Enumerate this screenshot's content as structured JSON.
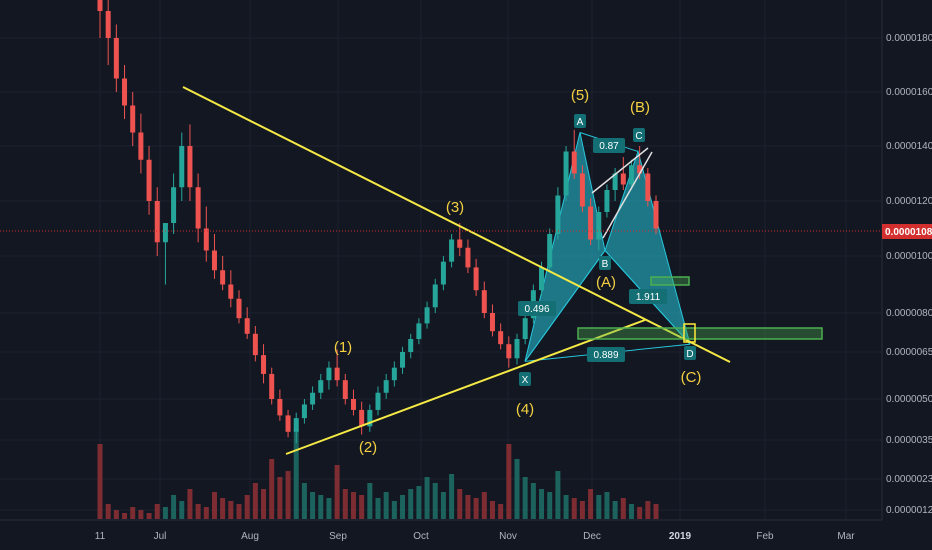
{
  "chart_data": {
    "type": "candlestick",
    "x_axis": {
      "ticks": [
        "11",
        "Jul",
        "Aug",
        "Sep",
        "Oct",
        "Nov",
        "Dec",
        "2019",
        "Feb",
        "Mar"
      ],
      "bold_tick": "2019"
    },
    "y_axis": {
      "ticks": [
        "0.00001800",
        "0.00001600",
        "0.00001400",
        "0.00001200",
        "0.00001000",
        "0.00000800",
        "0.00000650",
        "0.00000500",
        "0.00000350",
        "0.00000230",
        "0.00000120"
      ]
    },
    "current_price": "0.00001081",
    "elliott_waves": [
      {
        "label": "(1)",
        "price": 6.6e-06
      },
      {
        "label": "(2)",
        "price": 3.7e-06
      },
      {
        "label": "(3)",
        "price": 1.12e-05
      },
      {
        "label": "(4)",
        "price": 6e-06
      },
      {
        "label": "(5)",
        "price": 1.45e-05
      },
      {
        "label": "(A)",
        "price": 1.02e-05
      },
      {
        "label": "(B)",
        "price": 1.4e-05
      },
      {
        "label": "(C)",
        "price": 6.8e-06
      }
    ],
    "harmonic_pattern": {
      "points": [
        {
          "label": "X",
          "price": 6.2e-06
        },
        {
          "label": "A",
          "price": 1.45e-05
        },
        {
          "label": "B",
          "price": 1.02e-05
        },
        {
          "label": "C",
          "price": 1.38e-05
        },
        {
          "label": "D",
          "price": 6.8e-06
        }
      ],
      "ratios": [
        "0.87",
        "0.496",
        "1.911",
        "0.889"
      ]
    },
    "series": [
      {
        "name": "price",
        "ohlc": [
          [
            2.5e-05,
            2.52e-05,
            1.8e-05,
            1.9e-05
          ],
          [
            1.9e-05,
            1.95e-05,
            1.7e-05,
            1.8e-05
          ],
          [
            1.8e-05,
            1.85e-05,
            1.6e-05,
            1.65e-05
          ],
          [
            1.65e-05,
            1.7e-05,
            1.5e-05,
            1.55e-05
          ],
          [
            1.55e-05,
            1.6e-05,
            1.4e-05,
            1.45e-05
          ],
          [
            1.45e-05,
            1.52e-05,
            1.3e-05,
            1.35e-05
          ],
          [
            1.35e-05,
            1.4e-05,
            1.15e-05,
            1.2e-05
          ],
          [
            1.2e-05,
            1.25e-05,
            1e-05,
            1.05e-05
          ],
          [
            1.05e-05,
            1.1e-05,
            9e-06,
            1.12e-05
          ],
          [
            1.12e-05,
            1.3e-05,
            1.08e-05,
            1.25e-05
          ],
          [
            1.25e-05,
            1.45e-05,
            1.2e-05,
            1.4e-05
          ],
          [
            1.4e-05,
            1.48e-05,
            1.2e-05,
            1.25e-05
          ],
          [
            1.25e-05,
            1.3e-05,
            1.05e-05,
            1.1e-05
          ],
          [
            1.1e-05,
            1.18e-05,
            9.8e-06,
            1.02e-05
          ],
          [
            1.02e-05,
            1.08e-05,
            9.2e-06,
            9.5e-06
          ],
          [
            9.5e-06,
            1e-05,
            8.8e-06,
            9e-06
          ],
          [
            9e-06,
            9.5e-06,
            8.2e-06,
            8.5e-06
          ],
          [
            8.5e-06,
            8.8e-06,
            7.6e-06,
            7.8e-06
          ],
          [
            7.8e-06,
            8.2e-06,
            7e-06,
            7.2e-06
          ],
          [
            7.2e-06,
            7.5e-06,
            6.2e-06,
            6.4e-06
          ],
          [
            6.4e-06,
            6.8e-06,
            5.5e-06,
            5.8e-06
          ],
          [
            5.8e-06,
            6e-06,
            4.8e-06,
            5e-06
          ],
          [
            5e-06,
            5.3e-06,
            4.2e-06,
            4.4e-06
          ],
          [
            4.4e-06,
            4.6e-06,
            3.6e-06,
            3.8e-06
          ],
          [
            3.8e-06,
            4.5e-06,
            3.4e-06,
            4.3e-06
          ],
          [
            4.3e-06,
            5e-06,
            4.1e-06,
            4.8e-06
          ],
          [
            4.8e-06,
            5.4e-06,
            4.6e-06,
            5.2e-06
          ],
          [
            5.2e-06,
            5.8e-06,
            5e-06,
            5.6e-06
          ],
          [
            5.6e-06,
            6.2e-06,
            5.3e-06,
            6e-06
          ],
          [
            6e-06,
            6.6e-06,
            5.4e-06,
            5.6e-06
          ],
          [
            5.6e-06,
            5.8e-06,
            4.8e-06,
            5e-06
          ],
          [
            5e-06,
            5.3e-06,
            4.4e-06,
            4.6e-06
          ],
          [
            4.6e-06,
            4.9e-06,
            3.7e-06,
            4e-06
          ],
          [
            4e-06,
            4.8e-06,
            3.8e-06,
            4.6e-06
          ],
          [
            4.6e-06,
            5.4e-06,
            4.4e-06,
            5.2e-06
          ],
          [
            5.2e-06,
            5.8e-06,
            5e-06,
            5.6e-06
          ],
          [
            5.6e-06,
            6.2e-06,
            5.4e-06,
            6e-06
          ],
          [
            6e-06,
            6.7e-06,
            5.8e-06,
            6.5e-06
          ],
          [
            6.5e-06,
            7.2e-06,
            6.3e-06,
            7e-06
          ],
          [
            7e-06,
            7.8e-06,
            6.8e-06,
            7.6e-06
          ],
          [
            7.6e-06,
            8.4e-06,
            7.4e-06,
            8.2e-06
          ],
          [
            8.2e-06,
            9.2e-06,
            8e-06,
            9e-06
          ],
          [
            9e-06,
            1e-05,
            8.8e-06,
            9.8e-06
          ],
          [
            9.8e-06,
            1.08e-05,
            9.6e-06,
            1.06e-05
          ],
          [
            1.06e-05,
            1.12e-05,
            1e-05,
            1.03e-05
          ],
          [
            1.03e-05,
            1.06e-05,
            9.4e-06,
            9.6e-06
          ],
          [
            9.6e-06,
            9.9e-06,
            8.6e-06,
            8.8e-06
          ],
          [
            8.8e-06,
            9.1e-06,
            7.8e-06,
            8e-06
          ],
          [
            8e-06,
            8.3e-06,
            7.1e-06,
            7.3e-06
          ],
          [
            7.3e-06,
            7.6e-06,
            6.6e-06,
            6.8e-06
          ],
          [
            6.8e-06,
            7.1e-06,
            6e-06,
            6.3e-06
          ],
          [
            6.3e-06,
            7.2e-06,
            6.1e-06,
            7e-06
          ],
          [
            7e-06,
            8e-06,
            6.8e-06,
            7.8e-06
          ],
          [
            7.8e-06,
            9e-06,
            7.6e-06,
            8.8e-06
          ],
          [
            8.8e-06,
            9.8e-06,
            8.6e-06,
            9.6e-06
          ],
          [
            9.6e-06,
            1.1e-05,
            9.4e-06,
            1.08e-05
          ],
          [
            1.08e-05,
            1.25e-05,
            1.06e-05,
            1.22e-05
          ],
          [
            1.22e-05,
            1.4e-05,
            1.2e-05,
            1.38e-05
          ],
          [
            1.38e-05,
            1.46e-05,
            1.28e-05,
            1.3e-05
          ],
          [
            1.3e-05,
            1.33e-05,
            1.16e-05,
            1.18e-05
          ],
          [
            1.18e-05,
            1.21e-05,
            1.04e-05,
            1.06e-05
          ],
          [
            1.06e-05,
            1.18e-05,
            1.02e-05,
            1.16e-05
          ],
          [
            1.16e-05,
            1.26e-05,
            1.14e-05,
            1.24e-05
          ],
          [
            1.24e-05,
            1.32e-05,
            1.2e-05,
            1.3e-05
          ],
          [
            1.3e-05,
            1.36e-05,
            1.24e-05,
            1.26e-05
          ],
          [
            1.26e-05,
            1.35e-05,
            1.24e-05,
            1.33e-05
          ],
          [
            1.33e-05,
            1.4e-05,
            1.28e-05,
            1.3e-05
          ],
          [
            1.3e-05,
            1.32e-05,
            1.18e-05,
            1.2e-05
          ],
          [
            1.2e-05,
            1.22e-05,
            1.08e-05,
            1.1e-05
          ]
        ]
      },
      {
        "name": "volume",
        "values": [
          25,
          5,
          3,
          2,
          4,
          3,
          2,
          5,
          4,
          8,
          6,
          10,
          5,
          4,
          9,
          7,
          6,
          5,
          8,
          12,
          10,
          20,
          14,
          16,
          30,
          12,
          9,
          8,
          7,
          18,
          10,
          9,
          8,
          12,
          7,
          9,
          6,
          8,
          10,
          11,
          14,
          12,
          9,
          15,
          10,
          8,
          7,
          9,
          6,
          5,
          25,
          20,
          14,
          12,
          10,
          9,
          16,
          8,
          7,
          6,
          10,
          8,
          9,
          6,
          7,
          5,
          4,
          6,
          5
        ]
      }
    ]
  }
}
